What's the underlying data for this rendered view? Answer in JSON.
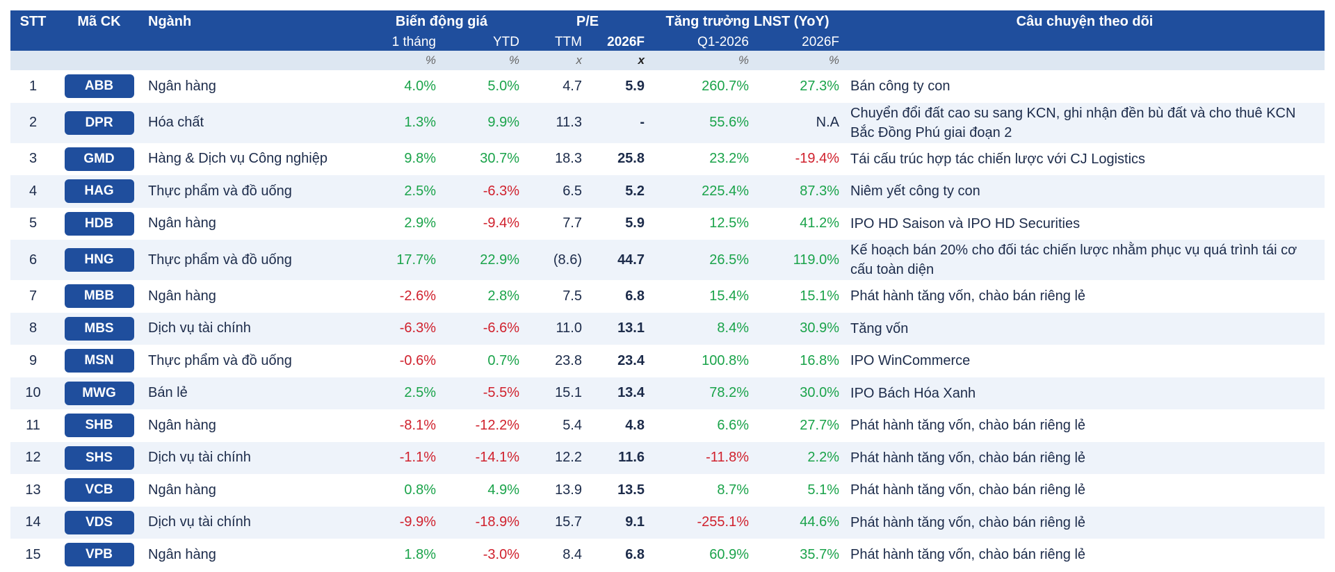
{
  "header": {
    "stt": "STT",
    "ticker": "Mã CK",
    "sector": "Ngành",
    "price_change": "Biến động giá",
    "pe": "P/E",
    "growth": "Tăng trưởng LNST (YoY)",
    "story": "Câu chuyện theo dõi",
    "sub": {
      "m1": "1 tháng",
      "ytd": "YTD",
      "ttm": "TTM",
      "pe2026": "2026F",
      "q1": "Q1-2026",
      "g2026": "2026F"
    },
    "units": {
      "m1": "%",
      "ytd": "%",
      "ttm": "x",
      "pe2026": "x",
      "q1": "%",
      "g2026": "%"
    }
  },
  "colors": {
    "header_bg": "#1f4e9d",
    "positive": "#1aa34a",
    "negative": "#d0212d",
    "row_alt": "#eef3fa"
  },
  "rows": [
    {
      "stt": "1",
      "ticker": "ABB",
      "sector": "Ngân hàng",
      "m1": "4.0%",
      "ytd": "5.0%",
      "ttm": "4.7",
      "pe2026": "5.9",
      "q1": "260.7%",
      "g2026": "27.3%",
      "story": "Bán công ty con"
    },
    {
      "stt": "2",
      "ticker": "DPR",
      "sector": "Hóa chất",
      "m1": "1.3%",
      "ytd": "9.9%",
      "ttm": "11.3",
      "pe2026": "-",
      "q1": "55.6%",
      "g2026": "N.A",
      "story": "Chuyển đổi đất cao su sang KCN, ghi nhận đền bù đất và cho thuê KCN Bắc Đồng Phú giai đoạn 2"
    },
    {
      "stt": "3",
      "ticker": "GMD",
      "sector": "Hàng & Dịch vụ Công nghiệp",
      "m1": "9.8%",
      "ytd": "30.7%",
      "ttm": "18.3",
      "pe2026": "25.8",
      "q1": "23.2%",
      "g2026": "-19.4%",
      "story": "Tái cấu trúc hợp tác chiến lược với CJ Logistics"
    },
    {
      "stt": "4",
      "ticker": "HAG",
      "sector": "Thực phẩm và đồ uống",
      "m1": "2.5%",
      "ytd": "-6.3%",
      "ttm": "6.5",
      "pe2026": "5.2",
      "q1": "225.4%",
      "g2026": "87.3%",
      "story": "Niêm yết công ty con"
    },
    {
      "stt": "5",
      "ticker": "HDB",
      "sector": "Ngân hàng",
      "m1": "2.9%",
      "ytd": "-9.4%",
      "ttm": "7.7",
      "pe2026": "5.9",
      "q1": "12.5%",
      "g2026": "41.2%",
      "story": "IPO HD Saison và IPO HD Securities"
    },
    {
      "stt": "6",
      "ticker": "HNG",
      "sector": "Thực phẩm và đồ uống",
      "m1": "17.7%",
      "ytd": "22.9%",
      "ttm": "(8.6)",
      "pe2026": "44.7",
      "q1": "26.5%",
      "g2026": "119.0%",
      "story": "Kế hoạch bán 20% cho đối tác chiến lược nhằm phục vụ quá trình tái cơ cấu toàn diện"
    },
    {
      "stt": "7",
      "ticker": "MBB",
      "sector": "Ngân hàng",
      "m1": "-2.6%",
      "ytd": "2.8%",
      "ttm": "7.5",
      "pe2026": "6.8",
      "q1": "15.4%",
      "g2026": "15.1%",
      "story": "Phát hành tăng vốn, chào bán riêng lẻ"
    },
    {
      "stt": "8",
      "ticker": "MBS",
      "sector": "Dịch vụ tài chính",
      "m1": "-6.3%",
      "ytd": "-6.6%",
      "ttm": "11.0",
      "pe2026": "13.1",
      "q1": "8.4%",
      "g2026": "30.9%",
      "story": "Tăng vốn"
    },
    {
      "stt": "9",
      "ticker": "MSN",
      "sector": "Thực phẩm và đồ uống",
      "m1": "-0.6%",
      "ytd": "0.7%",
      "ttm": "23.8",
      "pe2026": "23.4",
      "q1": "100.8%",
      "g2026": "16.8%",
      "story": "IPO WinCommerce"
    },
    {
      "stt": "10",
      "ticker": "MWG",
      "sector": "Bán lẻ",
      "m1": "2.5%",
      "ytd": "-5.5%",
      "ttm": "15.1",
      "pe2026": "13.4",
      "q1": "78.2%",
      "g2026": "30.0%",
      "story": "IPO Bách Hóa Xanh"
    },
    {
      "stt": "11",
      "ticker": "SHB",
      "sector": "Ngân hàng",
      "m1": "-8.1%",
      "ytd": "-12.2%",
      "ttm": "5.4",
      "pe2026": "4.8",
      "q1": "6.6%",
      "g2026": "27.7%",
      "story": "Phát hành tăng vốn, chào bán riêng lẻ"
    },
    {
      "stt": "12",
      "ticker": "SHS",
      "sector": "Dịch vụ tài chính",
      "m1": "-1.1%",
      "ytd": "-14.1%",
      "ttm": "12.2",
      "pe2026": "11.6",
      "q1": "-11.8%",
      "g2026": "2.2%",
      "story": "Phát hành tăng vốn, chào bán riêng lẻ"
    },
    {
      "stt": "13",
      "ticker": "VCB",
      "sector": "Ngân hàng",
      "m1": "0.8%",
      "ytd": "4.9%",
      "ttm": "13.9",
      "pe2026": "13.5",
      "q1": "8.7%",
      "g2026": "5.1%",
      "story": "Phát hành tăng vốn, chào bán riêng lẻ"
    },
    {
      "stt": "14",
      "ticker": "VDS",
      "sector": "Dịch vụ tài chính",
      "m1": "-9.9%",
      "ytd": "-18.9%",
      "ttm": "15.7",
      "pe2026": "9.1",
      "q1": "-255.1%",
      "g2026": "44.6%",
      "story": "Phát hành tăng vốn, chào bán riêng lẻ"
    },
    {
      "stt": "15",
      "ticker": "VPB",
      "sector": "Ngân hàng",
      "m1": "1.8%",
      "ytd": "-3.0%",
      "ttm": "8.4",
      "pe2026": "6.8",
      "q1": "60.9%",
      "g2026": "35.7%",
      "story": "Phát hành tăng vốn, chào bán riêng lẻ"
    }
  ]
}
